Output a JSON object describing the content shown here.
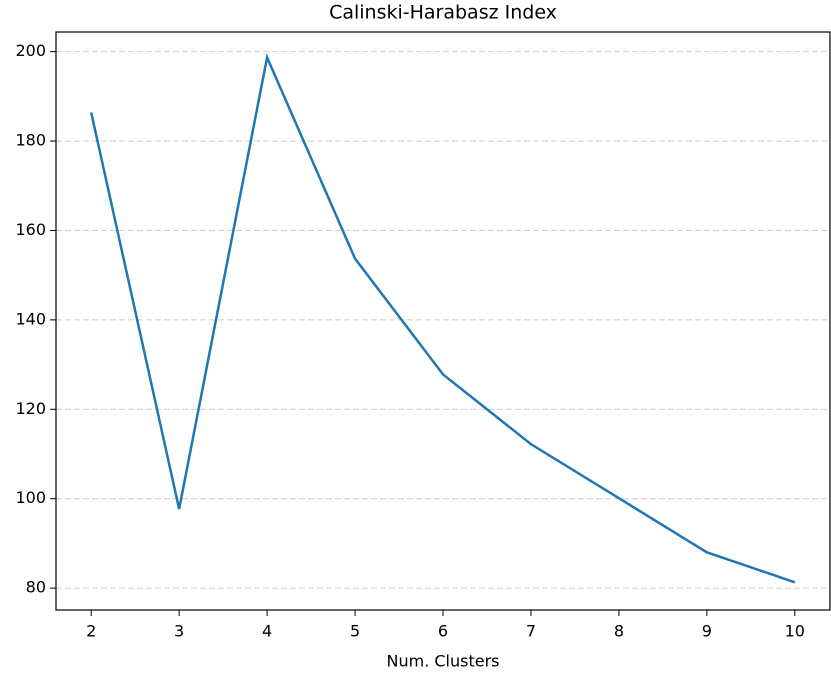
{
  "chart_data": {
    "type": "line",
    "title": "Calinski-Harabasz Index",
    "xlabel": "Num. Clusters",
    "x": [
      2,
      3,
      4,
      5,
      6,
      7,
      8,
      9,
      10
    ],
    "series": [
      {
        "name": "Calinski-Harabasz Index",
        "color": "#1f77b4",
        "values": [
          186.4,
          97.7,
          198.7,
          153.7,
          127.8,
          112.2,
          100.1,
          88.0,
          81.3
        ]
      }
    ],
    "xlim": [
      1.6,
      10.4
    ],
    "xticks": [
      2,
      3,
      4,
      5,
      6,
      7,
      8,
      9,
      10
    ],
    "ylim": [
      75.1,
      204.4
    ],
    "yticks": [
      80,
      100,
      120,
      140,
      160,
      180,
      200
    ],
    "grid": "y"
  }
}
